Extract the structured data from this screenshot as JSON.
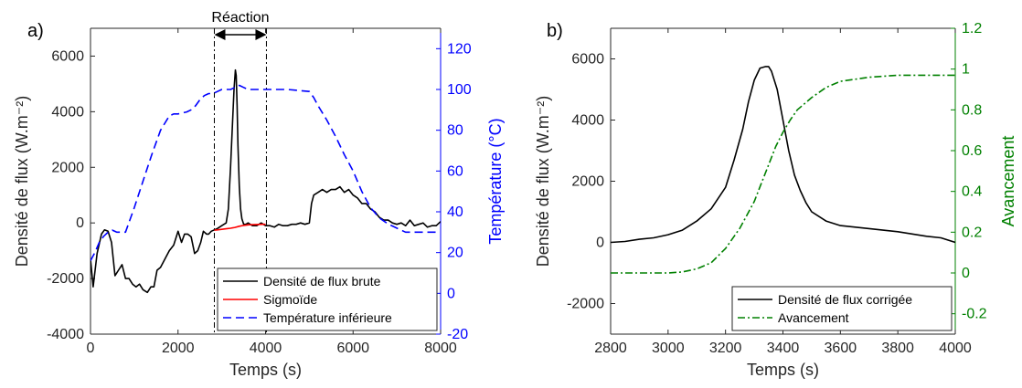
{
  "chart_data": [
    {
      "panel_label": "a)",
      "type": "line",
      "annotation": "Réaction",
      "reaction_interval": [
        2830,
        4020
      ],
      "xlabel": "Temps (s)",
      "xlim": [
        0,
        8000
      ],
      "xticks": [
        0,
        2000,
        4000,
        6000,
        8000
      ],
      "ylabel_left": "Densité de flux (W.m⁻²)",
      "ylim_left": [
        -4000,
        7000
      ],
      "yticks_left": [
        -4000,
        -2000,
        0,
        2000,
        4000,
        6000
      ],
      "ylabel_right": "Température (°C)",
      "ylim_right": [
        -20,
        130
      ],
      "yticks_right": [
        -20,
        0,
        20,
        40,
        60,
        80,
        100,
        120
      ],
      "right_axis_color": "#0000ff",
      "grid": false,
      "legend_position": "bottom-right",
      "series": [
        {
          "name": "Densité de flux brute",
          "axis": "left",
          "color": "#000000",
          "style": "solid",
          "x": [
            0,
            60,
            150,
            250,
            320,
            400,
            480,
            560,
            640,
            720,
            800,
            880,
            960,
            1040,
            1120,
            1200,
            1300,
            1380,
            1450,
            1520,
            1600,
            1700,
            1800,
            1900,
            2000,
            2080,
            2150,
            2220,
            2300,
            2380,
            2450,
            2520,
            2580,
            2650,
            2700,
            2760,
            2830,
            2900,
            3000,
            3100,
            3150,
            3200,
            3240,
            3280,
            3310,
            3330,
            3350,
            3370,
            3400,
            3430,
            3460,
            3500,
            3550,
            3600,
            3700,
            3800,
            3900,
            4000,
            4100,
            4200,
            4300,
            4400,
            4500,
            4600,
            4700,
            4800,
            4900,
            5000,
            5050,
            5100,
            5200,
            5300,
            5400,
            5500,
            5600,
            5700,
            5800,
            5900,
            6000,
            6100,
            6200,
            6300,
            6400,
            6500,
            6600,
            6700,
            6800,
            6900,
            7000,
            7100,
            7200,
            7300,
            7400,
            7500,
            7600,
            7700,
            7800,
            7900,
            8000
          ],
          "values": [
            -1300,
            -2300,
            -1100,
            -400,
            -250,
            -300,
            -700,
            -1900,
            -1700,
            -1500,
            -2000,
            -2000,
            -2200,
            -2300,
            -2200,
            -2400,
            -2500,
            -2300,
            -2300,
            -1700,
            -1600,
            -1300,
            -1000,
            -800,
            -300,
            -700,
            -400,
            -400,
            -500,
            -1100,
            -1000,
            -700,
            -300,
            -400,
            -400,
            -300,
            -250,
            -200,
            -100,
            0,
            500,
            2000,
            3400,
            4800,
            5500,
            5300,
            4200,
            2800,
            1300,
            500,
            150,
            -50,
            -50,
            0,
            -100,
            -100,
            0,
            -100,
            -100,
            -150,
            -50,
            -100,
            -100,
            -50,
            -50,
            0,
            -50,
            0,
            700,
            1000,
            1100,
            1200,
            1100,
            1200,
            1200,
            1300,
            1100,
            1200,
            1000,
            900,
            700,
            700,
            500,
            400,
            200,
            100,
            100,
            0,
            -50,
            0,
            -100,
            100,
            -100,
            -50,
            0,
            -150,
            -100,
            -100,
            50
          ]
        },
        {
          "name": "Sigmoïde",
          "axis": "left",
          "color": "#ff0000",
          "style": "solid",
          "x": [
            2830,
            2900,
            3000,
            3100,
            3200,
            3300,
            3400,
            3500,
            3600,
            3700,
            3800,
            3900,
            4000
          ],
          "values": [
            -260,
            -250,
            -230,
            -210,
            -190,
            -160,
            -120,
            -90,
            -70,
            -60,
            -55,
            -50,
            -50
          ]
        },
        {
          "name": "Température inférieure",
          "axis": "right",
          "color": "#0000ff",
          "style": "dashed",
          "x": [
            0,
            100,
            200,
            300,
            400,
            500,
            600,
            700,
            800,
            1000,
            1200,
            1400,
            1600,
            1800,
            1900,
            2000,
            2200,
            2300,
            2400,
            2500,
            2600,
            2700,
            2800,
            3000,
            3200,
            3300,
            3400,
            3500,
            3600,
            3800,
            4000,
            4500,
            5000,
            5100,
            5200,
            5400,
            5600,
            5800,
            6000,
            6200,
            6400,
            6600,
            6800,
            7000,
            7200,
            7500,
            8000
          ],
          "values": [
            16,
            20,
            25,
            28,
            30,
            31,
            30,
            30,
            30,
            42,
            55,
            68,
            80,
            87,
            88,
            88,
            89,
            90,
            92,
            95,
            97,
            98,
            98,
            100,
            100,
            101,
            102,
            101,
            100,
            100,
            100,
            100,
            99,
            96,
            92,
            85,
            77,
            68,
            60,
            50,
            42,
            37,
            34,
            32,
            30,
            30,
            30
          ]
        }
      ]
    },
    {
      "panel_label": "b)",
      "type": "line",
      "xlabel": "Temps (s)",
      "xlim": [
        2800,
        4000
      ],
      "xticks": [
        2800,
        3000,
        3200,
        3400,
        3600,
        3800,
        4000
      ],
      "ylabel_left": "Densité de flux (W.m⁻²)",
      "ylim_left": [
        -3000,
        7000
      ],
      "yticks_left": [
        -2000,
        0,
        2000,
        4000,
        6000
      ],
      "ylabel_right": "Avancement",
      "ylim_right": [
        -0.3,
        1.2
      ],
      "yticks_right": [
        -0.2,
        0,
        0.2,
        0.4,
        0.6,
        0.8,
        1,
        1.2
      ],
      "right_axis_color": "#008000",
      "grid": false,
      "legend_position": "bottom-right",
      "series": [
        {
          "name": "Densité de flux corrigée",
          "axis": "left",
          "color": "#000000",
          "style": "solid",
          "x": [
            2800,
            2850,
            2900,
            2950,
            3000,
            3050,
            3100,
            3150,
            3200,
            3230,
            3260,
            3280,
            3300,
            3320,
            3340,
            3350,
            3360,
            3380,
            3400,
            3420,
            3440,
            3460,
            3480,
            3500,
            3550,
            3600,
            3700,
            3800,
            3900,
            3950,
            4000
          ],
          "values": [
            0,
            30,
            100,
            150,
            250,
            400,
            700,
            1100,
            1800,
            2700,
            3700,
            4600,
            5300,
            5700,
            5750,
            5750,
            5600,
            5000,
            4000,
            3000,
            2200,
            1700,
            1300,
            1000,
            700,
            550,
            450,
            350,
            200,
            150,
            0
          ]
        },
        {
          "name": "Avancement",
          "axis": "right",
          "color": "#008000",
          "style": "dashdot",
          "x": [
            2800,
            2900,
            3000,
            3050,
            3100,
            3150,
            3200,
            3250,
            3300,
            3325,
            3350,
            3375,
            3400,
            3425,
            3450,
            3500,
            3550,
            3600,
            3700,
            3800,
            3900,
            4000
          ],
          "values": [
            0,
            0,
            0,
            0.005,
            0.02,
            0.05,
            0.12,
            0.22,
            0.35,
            0.44,
            0.53,
            0.62,
            0.69,
            0.75,
            0.8,
            0.86,
            0.91,
            0.94,
            0.96,
            0.97,
            0.97,
            0.97
          ]
        }
      ]
    }
  ]
}
